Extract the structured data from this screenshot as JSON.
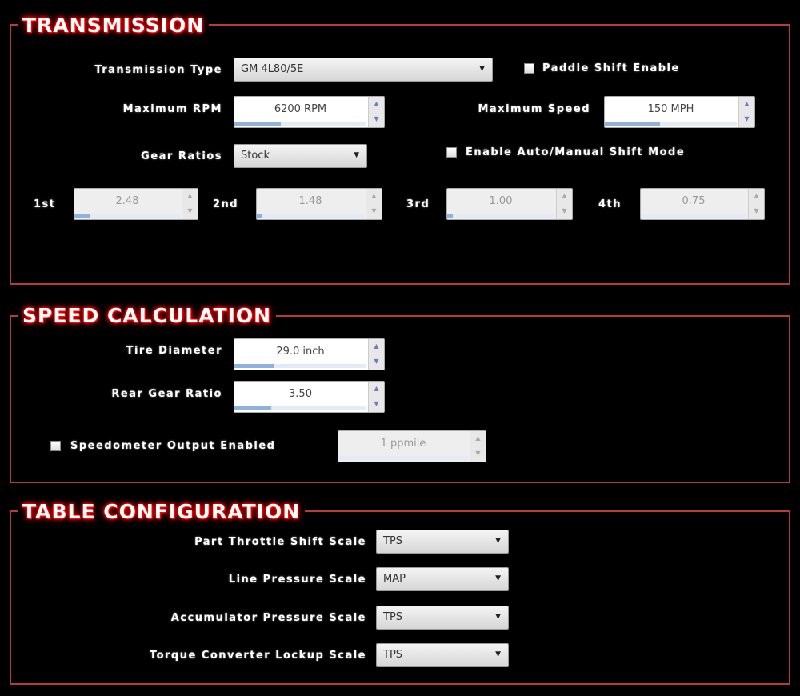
{
  "transmission": {
    "title": "TRANSMISSION",
    "type_label": "Transmission Type",
    "type_value": "GM 4L80/5E",
    "paddle_label": "Paddle Shift Enable",
    "paddle_checked": false,
    "max_rpm_label": "Maximum RPM",
    "max_rpm_value": "6200 RPM",
    "max_rpm_fill": 0.35,
    "max_speed_label": "Maximum Speed",
    "max_speed_value": "150 MPH",
    "max_speed_fill": 0.42,
    "gear_ratios_label": "Gear Ratios",
    "gear_ratios_value": "Stock",
    "auto_manual_label": "Enable Auto/Manual Shift Mode",
    "auto_manual_checked": false,
    "gears": [
      {
        "label": "1st",
        "value": "2.48",
        "fill": 0.15
      },
      {
        "label": "2nd",
        "value": "1.48",
        "fill": 0.05
      },
      {
        "label": "3rd",
        "value": "1.00",
        "fill": 0.05
      },
      {
        "label": "4th",
        "value": "0.75",
        "fill": 0.0
      }
    ]
  },
  "speed": {
    "title": "SPEED CALCULATION",
    "tire_label": "Tire Diameter",
    "tire_value": "29.0 inch",
    "tire_fill": 0.3,
    "rear_label": "Rear Gear Ratio",
    "rear_value": "3.50",
    "rear_fill": 0.28,
    "speedo_label": "Speedometer Output Enabled",
    "speedo_checked": false,
    "speedo_value": "1 ppmile",
    "speedo_fill": 0.0
  },
  "table": {
    "title": "TABLE CONFIGURATION",
    "rows": [
      {
        "label": "Part Throttle Shift Scale",
        "value": "TPS"
      },
      {
        "label": "Line Pressure Scale",
        "value": "MAP"
      },
      {
        "label": "Accumulator Pressure Scale",
        "value": "TPS"
      },
      {
        "label": "Torque Converter Lockup Scale",
        "value": "TPS"
      }
    ]
  },
  "colors": {
    "frame": "#b83a3a",
    "title_glow": "#ff0000",
    "spin_fill": "#8fb2dc"
  }
}
